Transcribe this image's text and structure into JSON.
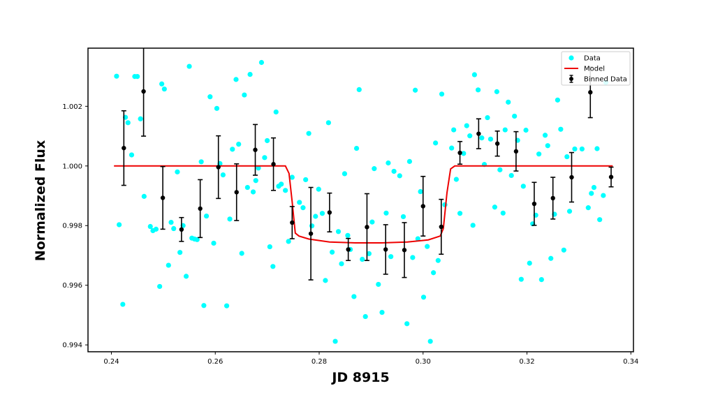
{
  "chart_data": {
    "type": "scatter",
    "title": "",
    "xlabel": "JD 8915",
    "ylabel": "Normalized Flux",
    "xlim": [
      0.2355,
      0.3405
    ],
    "ylim": [
      0.99377,
      1.00395
    ],
    "x_ticks": [
      0.24,
      0.26,
      0.28,
      0.3,
      0.32,
      0.34
    ],
    "x_tick_labels": [
      "0.24",
      "0.26",
      "0.28",
      "0.30",
      "0.32",
      "0.34"
    ],
    "y_ticks": [
      0.994,
      0.996,
      0.998,
      1.0,
      1.002
    ],
    "y_tick_labels": [
      "0.994",
      "0.996",
      "0.998",
      "1.000",
      "1.002"
    ],
    "grid": false,
    "legend_position": "top-right",
    "colors": {
      "data": "#00ffff",
      "model": "#ee0000",
      "binned": "#000000"
    },
    "series": [
      {
        "name": "Data",
        "kind": "scatter",
        "points": [
          [
            0.241,
            1.00301
          ],
          [
            0.2415,
            0.99803
          ],
          [
            0.2422,
            0.99536
          ],
          [
            0.2427,
            1.00163
          ],
          [
            0.2432,
            1.00145
          ],
          [
            0.2439,
            1.00037
          ],
          [
            0.2445,
            1.003
          ],
          [
            0.245,
            1.003
          ],
          [
            0.2456,
            1.00158
          ],
          [
            0.2463,
            0.99898
          ],
          [
            0.2475,
            0.99797
          ],
          [
            0.248,
            0.99783
          ],
          [
            0.2486,
            0.99788
          ],
          [
            0.2493,
            0.99596
          ],
          [
            0.2497,
            1.00275
          ],
          [
            0.2502,
            1.00258
          ],
          [
            0.251,
            0.99667
          ],
          [
            0.2515,
            0.99811
          ],
          [
            0.252,
            0.9979
          ],
          [
            0.2527,
            0.9998
          ],
          [
            0.2532,
            0.9971
          ],
          [
            0.2538,
            0.998
          ],
          [
            0.2544,
            0.9963
          ],
          [
            0.255,
            1.00334
          ],
          [
            0.2555,
            0.99758
          ],
          [
            0.256,
            0.99755
          ],
          [
            0.2565,
            0.99753
          ],
          [
            0.2573,
            1.00014
          ],
          [
            0.2578,
            0.99532
          ],
          [
            0.2583,
            0.99832
          ],
          [
            0.259,
            1.00232
          ],
          [
            0.2597,
            0.99741
          ],
          [
            0.2603,
            1.00193
          ],
          [
            0.2609,
            1.00008
          ],
          [
            0.2615,
            0.9997
          ],
          [
            0.2622,
            0.99531
          ],
          [
            0.2628,
            0.99822
          ],
          [
            0.2633,
            1.00056
          ],
          [
            0.264,
            1.0029
          ],
          [
            0.2645,
            1.00073
          ],
          [
            0.2651,
            0.99707
          ],
          [
            0.2656,
            1.00238
          ],
          [
            0.2662,
            0.99928
          ],
          [
            0.2667,
            1.00307
          ],
          [
            0.2673,
            0.99913
          ],
          [
            0.2678,
            0.99951
          ],
          [
            0.2683,
            0.99993
          ],
          [
            0.2689,
            1.00347
          ],
          [
            0.2695,
            1.00028
          ],
          [
            0.27,
            1.00085
          ],
          [
            0.2705,
            0.99729
          ],
          [
            0.2711,
            0.99663
          ],
          [
            0.2717,
            1.00181
          ],
          [
            0.2722,
            0.99932
          ],
          [
            0.2727,
            0.99939
          ],
          [
            0.2735,
            0.99918
          ],
          [
            0.2741,
            0.99747
          ],
          [
            0.2748,
            0.99962
          ],
          [
            0.2762,
            0.99878
          ],
          [
            0.2769,
            0.9986
          ],
          [
            0.2774,
            0.99954
          ],
          [
            0.278,
            1.00109
          ],
          [
            0.2786,
            0.99799
          ],
          [
            0.2793,
            0.99831
          ],
          [
            0.2799,
            0.99922
          ],
          [
            0.2806,
            0.99841
          ],
          [
            0.2812,
            0.99616
          ],
          [
            0.2818,
            1.00145
          ],
          [
            0.2825,
            0.99711
          ],
          [
            0.2831,
            0.99412
          ],
          [
            0.2837,
            0.9978
          ],
          [
            0.2843,
            0.99672
          ],
          [
            0.2849,
            0.99974
          ],
          [
            0.2855,
            0.99767
          ],
          [
            0.286,
            0.9972
          ],
          [
            0.2867,
            0.99562
          ],
          [
            0.2872,
            1.00059
          ],
          [
            0.2877,
            1.00256
          ],
          [
            0.2883,
            0.99687
          ],
          [
            0.2889,
            0.99495
          ],
          [
            0.2896,
            0.99706
          ],
          [
            0.2902,
            0.99812
          ],
          [
            0.2906,
            0.99991
          ],
          [
            0.2914,
            0.99603
          ],
          [
            0.2921,
            0.99509
          ],
          [
            0.2929,
            0.99842
          ],
          [
            0.2933,
            1.0001
          ],
          [
            0.2938,
            0.99696
          ],
          [
            0.2944,
            0.99982
          ],
          [
            0.2955,
            0.99967
          ],
          [
            0.2962,
            0.9983
          ],
          [
            0.2969,
            0.99471
          ],
          [
            0.2974,
            1.00015
          ],
          [
            0.298,
            0.99693
          ],
          [
            0.2985,
            1.00254
          ],
          [
            0.299,
            0.99756
          ],
          [
            0.2995,
            0.99914
          ],
          [
            0.3001,
            0.9956
          ],
          [
            0.3008,
            0.9973
          ],
          [
            0.3014,
            0.99412
          ],
          [
            0.302,
            0.99642
          ],
          [
            0.3024,
            1.00077
          ],
          [
            0.3029,
            0.99683
          ],
          [
            0.3036,
            1.00241
          ],
          [
            0.3042,
            0.9987
          ],
          [
            0.3055,
            1.0006
          ],
          [
            0.3059,
            1.00121
          ],
          [
            0.3064,
            0.99955
          ],
          [
            0.3071,
            0.99841
          ],
          [
            0.3078,
            1.00042
          ],
          [
            0.3084,
            1.00135
          ],
          [
            0.309,
            1.00101
          ],
          [
            0.3096,
            0.99801
          ],
          [
            0.3099,
            1.00306
          ],
          [
            0.3106,
            1.00255
          ],
          [
            0.3113,
            1.00094
          ],
          [
            0.3118,
            1.00005
          ],
          [
            0.3124,
            1.00162
          ],
          [
            0.313,
            1.0009
          ],
          [
            0.3138,
            0.99862
          ],
          [
            0.3142,
            1.00249
          ],
          [
            0.3148,
            0.99987
          ],
          [
            0.3154,
            0.99842
          ],
          [
            0.3158,
            1.00121
          ],
          [
            0.3164,
            1.00214
          ],
          [
            0.317,
            0.99968
          ],
          [
            0.3176,
            1.00167
          ],
          [
            0.3182,
            1.00086
          ],
          [
            0.3189,
            0.9962
          ],
          [
            0.3193,
            0.99932
          ],
          [
            0.3198,
            1.0012
          ],
          [
            0.3205,
            0.99674
          ],
          [
            0.3211,
            0.99806
          ],
          [
            0.3217,
            0.99835
          ],
          [
            0.3223,
            1.0004
          ],
          [
            0.3228,
            0.99619
          ],
          [
            0.3235,
            1.00103
          ],
          [
            0.324,
            1.00068
          ],
          [
            0.3246,
            0.9969
          ],
          [
            0.3253,
            0.99838
          ],
          [
            0.3259,
            1.00221
          ],
          [
            0.3265,
            1.00123
          ],
          [
            0.3271,
            0.99718
          ],
          [
            0.3277,
            1.00031
          ],
          [
            0.3282,
            0.99848
          ],
          [
            0.3292,
            1.00057
          ],
          [
            0.3306,
            1.00057
          ],
          [
            0.3318,
            0.9986
          ],
          [
            0.3324,
            0.99908
          ],
          [
            0.3329,
            0.99928
          ],
          [
            0.3335,
            1.00058
          ],
          [
            0.334,
            0.9982
          ],
          [
            0.3347,
            0.99901
          ],
          [
            0.3352,
            1.0028
          ]
        ]
      },
      {
        "name": "Model",
        "kind": "line",
        "points": [
          [
            0.2405,
            1.0
          ],
          [
            0.2735,
            1.0
          ],
          [
            0.2742,
            0.99975
          ],
          [
            0.2748,
            0.9988
          ],
          [
            0.2754,
            0.99775
          ],
          [
            0.2761,
            0.99765
          ],
          [
            0.278,
            0.99755
          ],
          [
            0.282,
            0.99745
          ],
          [
            0.287,
            0.99742
          ],
          [
            0.292,
            0.99742
          ],
          [
            0.297,
            0.99745
          ],
          [
            0.301,
            0.99752
          ],
          [
            0.3033,
            0.99765
          ],
          [
            0.3039,
            0.9979
          ],
          [
            0.3046,
            0.9991
          ],
          [
            0.3053,
            0.9999
          ],
          [
            0.3061,
            1.0
          ],
          [
            0.3365,
            1.0
          ]
        ]
      },
      {
        "name": "Binned Data",
        "kind": "errorbar",
        "points": [
          [
            0.2424,
            1.0006,
            0.00125
          ],
          [
            0.2462,
            1.0025,
            0.0015
          ],
          [
            0.2499,
            0.99893,
            0.00105
          ],
          [
            0.2535,
            0.99787,
            0.0004
          ],
          [
            0.2571,
            0.99857,
            0.00097
          ],
          [
            0.2606,
            0.99996,
            0.00105
          ],
          [
            0.2641,
            0.99912,
            0.00095
          ],
          [
            0.2677,
            1.00054,
            0.00085
          ],
          [
            0.2712,
            1.00006,
            0.00088
          ],
          [
            0.2748,
            0.9981,
            0.00054
          ],
          [
            0.2784,
            0.99773,
            0.00155
          ],
          [
            0.282,
            0.99844,
            0.00065
          ],
          [
            0.2856,
            0.9972,
            0.00037
          ],
          [
            0.2892,
            0.99795,
            0.00112
          ],
          [
            0.2928,
            0.9972,
            0.00083
          ],
          [
            0.2964,
            0.99718,
            0.00092
          ],
          [
            0.3,
            0.99865,
            0.001
          ],
          [
            0.3035,
            0.99796,
            0.00092
          ],
          [
            0.3071,
            1.00044,
            0.00038
          ],
          [
            0.3107,
            1.00108,
            0.0005
          ],
          [
            0.3143,
            1.00075,
            0.00042
          ],
          [
            0.3179,
            1.00049,
            0.00066
          ],
          [
            0.3214,
            0.99873,
            0.00072
          ],
          [
            0.325,
            0.99892,
            0.0007
          ],
          [
            0.3286,
            0.99962,
            0.00083
          ],
          [
            0.3322,
            1.00247,
            0.00085
          ],
          [
            0.3362,
            0.99963,
            0.00033
          ]
        ]
      }
    ]
  },
  "legend": {
    "items": [
      {
        "label": "Data"
      },
      {
        "label": "Model"
      },
      {
        "label": "Binned Data"
      }
    ]
  }
}
